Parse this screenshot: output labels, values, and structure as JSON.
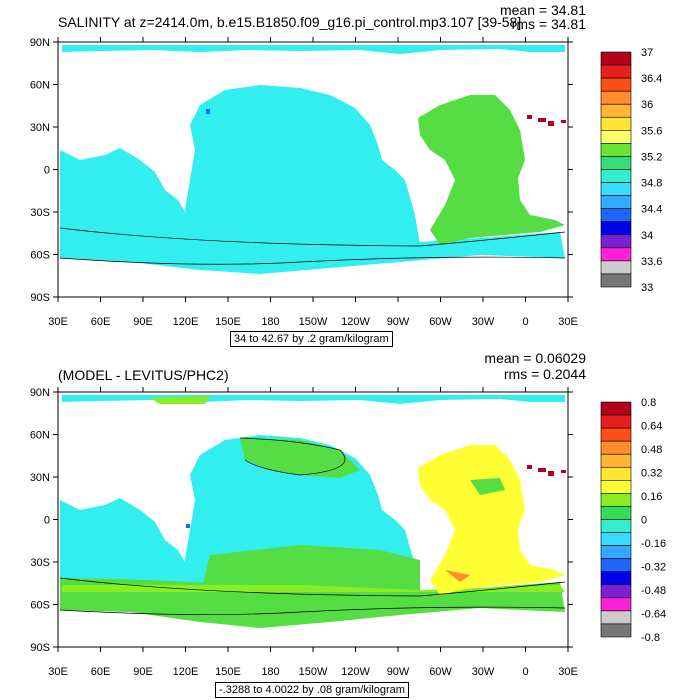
{
  "panels": [
    {
      "title": "SALINITY at z=2414.0m, b.e15.B1850.f09_g16.pi_control.mp3.107 [39-58]",
      "mean": "mean = 34.81",
      "rms": "rms = 34.81",
      "range": "34 to 42.67 by .2 gram/kilogram",
      "colorbar_labels": [
        "37",
        "36.4",
        "36",
        "35.6",
        "35.2",
        "34.8",
        "34.4",
        "34",
        "33.6",
        "33"
      ],
      "colors": [
        "#b3001b",
        "#e61e1e",
        "#ff4f19",
        "#ff8c2e",
        "#ffb533",
        "#ffe433",
        "#ffff66",
        "#66e633",
        "#33dd77",
        "#33eecc",
        "#33ddff",
        "#33aaff",
        "#1f66ff",
        "#0000e6",
        "#7a1fd6",
        "#ff1fd6",
        "#cccccc",
        "#777777"
      ]
    },
    {
      "title": "(MODEL - LEVITUS/PHC2)",
      "mean": "mean = 0.06029",
      "rms": "rms = 0.2044",
      "range": "-.3288 to 4.0022 by .08 gram/kilogram",
      "colorbar_labels": [
        "0.8",
        "0.64",
        "0.48",
        "0.32",
        "0.16",
        "0",
        "-0.16",
        "-0.32",
        "-0.48",
        "-0.64",
        "-0.8"
      ],
      "colors": [
        "#b3001b",
        "#e61e1e",
        "#ff4f19",
        "#ff8c2e",
        "#ffb533",
        "#ffe433",
        "#ffff33",
        "#88ee22",
        "#33dd55",
        "#33eecc",
        "#33ddff",
        "#33aaff",
        "#1f66ff",
        "#0000e6",
        "#7a1fd6",
        "#ff1fd6",
        "#cccccc",
        "#777777"
      ]
    }
  ],
  "map": {
    "lat_labels": [
      "90N",
      "60N",
      "30N",
      "0",
      "30S",
      "60S",
      "90S"
    ],
    "lon_labels": [
      "30E",
      "60E",
      "90E",
      "120E",
      "150E",
      "180",
      "150W",
      "120W",
      "90W",
      "60W",
      "30W",
      "0",
      "30E"
    ]
  }
}
